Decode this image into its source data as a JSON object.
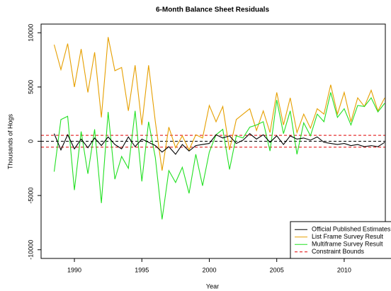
{
  "chart_data": {
    "type": "line",
    "title": "6-Month Balance Sheet Residuals",
    "x_label": "Year",
    "y_label": "Thousands of Hogs",
    "x": [
      1988.5,
      1989,
      1989.5,
      1990,
      1990.5,
      1991,
      1991.5,
      1992,
      1992.5,
      1993,
      1993.5,
      1994,
      1994.5,
      1995,
      1995.5,
      1996,
      1996.5,
      1997,
      1997.5,
      1998,
      1998.5,
      1999,
      1999.5,
      2000,
      2000.5,
      2001,
      2001.5,
      2002,
      2002.5,
      2003,
      2003.5,
      2004,
      2004.5,
      2005,
      2005.5,
      2006,
      2006.5,
      2007,
      2007.5,
      2008,
      2008.5,
      2009,
      2009.5,
      2010,
      2010.5,
      2011,
      2011.5,
      2012,
      2012.5,
      2013
    ],
    "series": [
      {
        "name": "List Frame Survey Result",
        "color": "#e69f00",
        "values": [
          8900,
          6600,
          9000,
          5000,
          8500,
          4500,
          8200,
          2200,
          9600,
          6500,
          6800,
          2800,
          7000,
          1500,
          7000,
          1800,
          -2700,
          1300,
          -600,
          500,
          -800,
          600,
          300,
          3300,
          1800,
          3200,
          -800,
          2000,
          2500,
          3000,
          1000,
          2800,
          800,
          4500,
          1500,
          4000,
          800,
          2500,
          1200,
          3000,
          2500,
          5200,
          2500,
          4500,
          1800,
          4000,
          3200,
          4700,
          2800,
          4000
        ]
      },
      {
        "name": "Multiframe Survey Result",
        "color": "#22e022",
        "values": [
          -2800,
          2000,
          2300,
          -4500,
          900,
          -3000,
          1100,
          -5700,
          2700,
          -3500,
          -1400,
          -2500,
          2800,
          -3700,
          1800,
          -1500,
          -7200,
          -2700,
          -3800,
          -2400,
          -4800,
          -1200,
          -4100,
          -1000,
          600,
          1100,
          -2600,
          500,
          300,
          1300,
          1500,
          1800,
          -900,
          3800,
          700,
          2800,
          -1200,
          1700,
          500,
          2500,
          1800,
          4500,
          2200,
          3000,
          1500,
          3300,
          3200,
          4000,
          2700,
          3500
        ]
      },
      {
        "name": "Official Published Estimates",
        "color": "#000000",
        "values": [
          700,
          -800,
          600,
          -700,
          200,
          -600,
          300,
          -400,
          400,
          -300,
          -700,
          400,
          -500,
          200,
          -100,
          -400,
          -1000,
          -500,
          -1200,
          -300,
          -900,
          -400,
          -300,
          -200,
          600,
          300,
          500,
          -200,
          100,
          700,
          200,
          600,
          -100,
          500,
          -300,
          500,
          200,
          300,
          100,
          400,
          -100,
          -200,
          -300,
          -200,
          -400,
          -300,
          -500,
          -400,
          -500,
          -100
        ]
      }
    ],
    "legend_order": [
      2,
      0,
      1
    ],
    "bounds": {
      "name": "Constraint Bounds",
      "color": "#e00000",
      "values": [
        -550,
        550
      ]
    },
    "reference_line": 0,
    "xlim": [
      1987.53,
      2013.05
    ],
    "ylim": [
      -10800,
      10800
    ],
    "xticks": [
      1990,
      1995,
      2000,
      2005,
      2010
    ],
    "yticks": [
      -10000,
      -5000,
      0,
      5000,
      10000
    ],
    "legend": "bottom-right"
  }
}
